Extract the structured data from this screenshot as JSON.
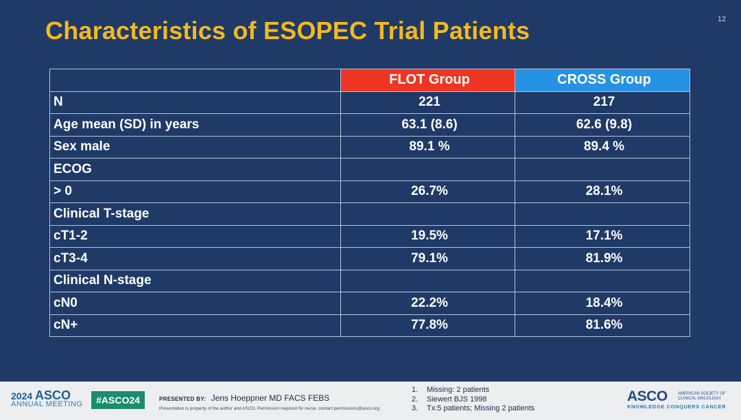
{
  "slide": {
    "number": "12",
    "title": "Characteristics of ESOPEC Trial Patients"
  },
  "table": {
    "headers": [
      "",
      "FLOT Group",
      "CROSS Group"
    ],
    "rows": [
      {
        "label": "N",
        "flot": "221",
        "cross": "217",
        "indent": false
      },
      {
        "label": "Age mean (SD) in years",
        "flot": "63.1 (8.6)",
        "cross": "62.6 (9.8)",
        "indent": false
      },
      {
        "label": "Sex male",
        "flot": "89.1 %",
        "cross": "89.4 %",
        "indent": false
      },
      {
        "label": "ECOG",
        "flot": "",
        "cross": "",
        "indent": false
      },
      {
        "label": "> 0",
        "flot": "26.7%",
        "cross": "28.1%",
        "indent": true
      },
      {
        "label": "Clinical T-stage",
        "flot": "",
        "cross": "",
        "indent": false
      },
      {
        "label": "cT1-2",
        "flot": "19.5%",
        "cross": "17.1%",
        "indent": true
      },
      {
        "label": "cT3-4",
        "flot": "79.1%",
        "cross": "81.9%",
        "indent": true
      },
      {
        "label": "Clinical N-stage",
        "flot": "",
        "cross": "",
        "indent": false
      },
      {
        "label": "cN0",
        "flot": "22.2%",
        "cross": "18.4%",
        "indent": true
      },
      {
        "label": "cN+",
        "flot": "77.8%",
        "cross": "81.6%",
        "indent": true
      }
    ],
    "colors": {
      "flot": "#ee3524",
      "cross": "#2592e3"
    }
  },
  "footer": {
    "meeting_year": "2024",
    "meeting_org": "ASCO",
    "meeting_sub": "ANNUAL MEETING",
    "hashtag": "#ASCO24",
    "presented_by_label": "PRESENTED BY:",
    "presenter": "Jens Hoeppner MD FACS FEBS",
    "disclaimer": "Presentation is property of the author and ASCO. Permission required for reuse; contact permissions@asco.org.",
    "notes": [
      {
        "n": "1.",
        "text": "Missing: 2 patients"
      },
      {
        "n": "2.",
        "text": "Siewert BJS 1998"
      },
      {
        "n": "3.",
        "text": "Tx:5 patients; Missing 2 patients"
      }
    ],
    "logo_word": "ASCO",
    "logo_side_1": "AMERICAN SOCIETY OF",
    "logo_side_2": "CLINICAL ONCOLOGY",
    "logo_tag": "KNOWLEDGE CONQUERS CANCER"
  }
}
